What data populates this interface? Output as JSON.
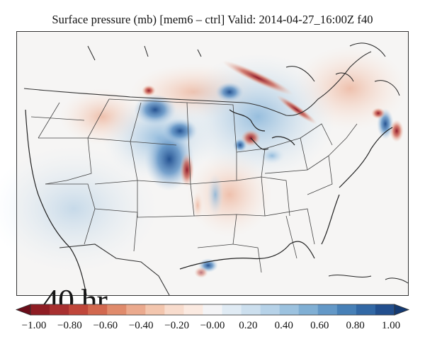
{
  "title": "Surface pressure (mb) [mem6 – ctrl] Valid: 2014-04-27_16:00Z f40",
  "hour_label": "40 hr",
  "colorbar": {
    "min": -1.0,
    "max": 1.0,
    "tick_labels": [
      "−1.00",
      "−0.80",
      "−0.60",
      "−0.40",
      "−0.20",
      "−0.00",
      "0.20",
      "0.40",
      "0.60",
      "0.80",
      "1.00"
    ],
    "colors": [
      "#6b0d1a",
      "#8f1d24",
      "#a83030",
      "#c0473b",
      "#d2684f",
      "#e08b6c",
      "#ebaa8e",
      "#f3c6ae",
      "#f8dccd",
      "#fbeae1",
      "#f4f4f6",
      "#e0ebf4",
      "#ccdfee",
      "#b6d2e8",
      "#9cc2df",
      "#80afd4",
      "#6398c7",
      "#4780b7",
      "#3268a5",
      "#224f8e",
      "#143a72"
    ]
  },
  "map": {
    "region": "contiguous United States and surrounding areas",
    "field_colors": {
      "positive_strong": "#b2182b",
      "positive_weak": "#f4a582",
      "negative_weak": "#92c5de",
      "negative_strong": "#2166ac",
      "neutral": "#f7f7f7"
    }
  }
}
